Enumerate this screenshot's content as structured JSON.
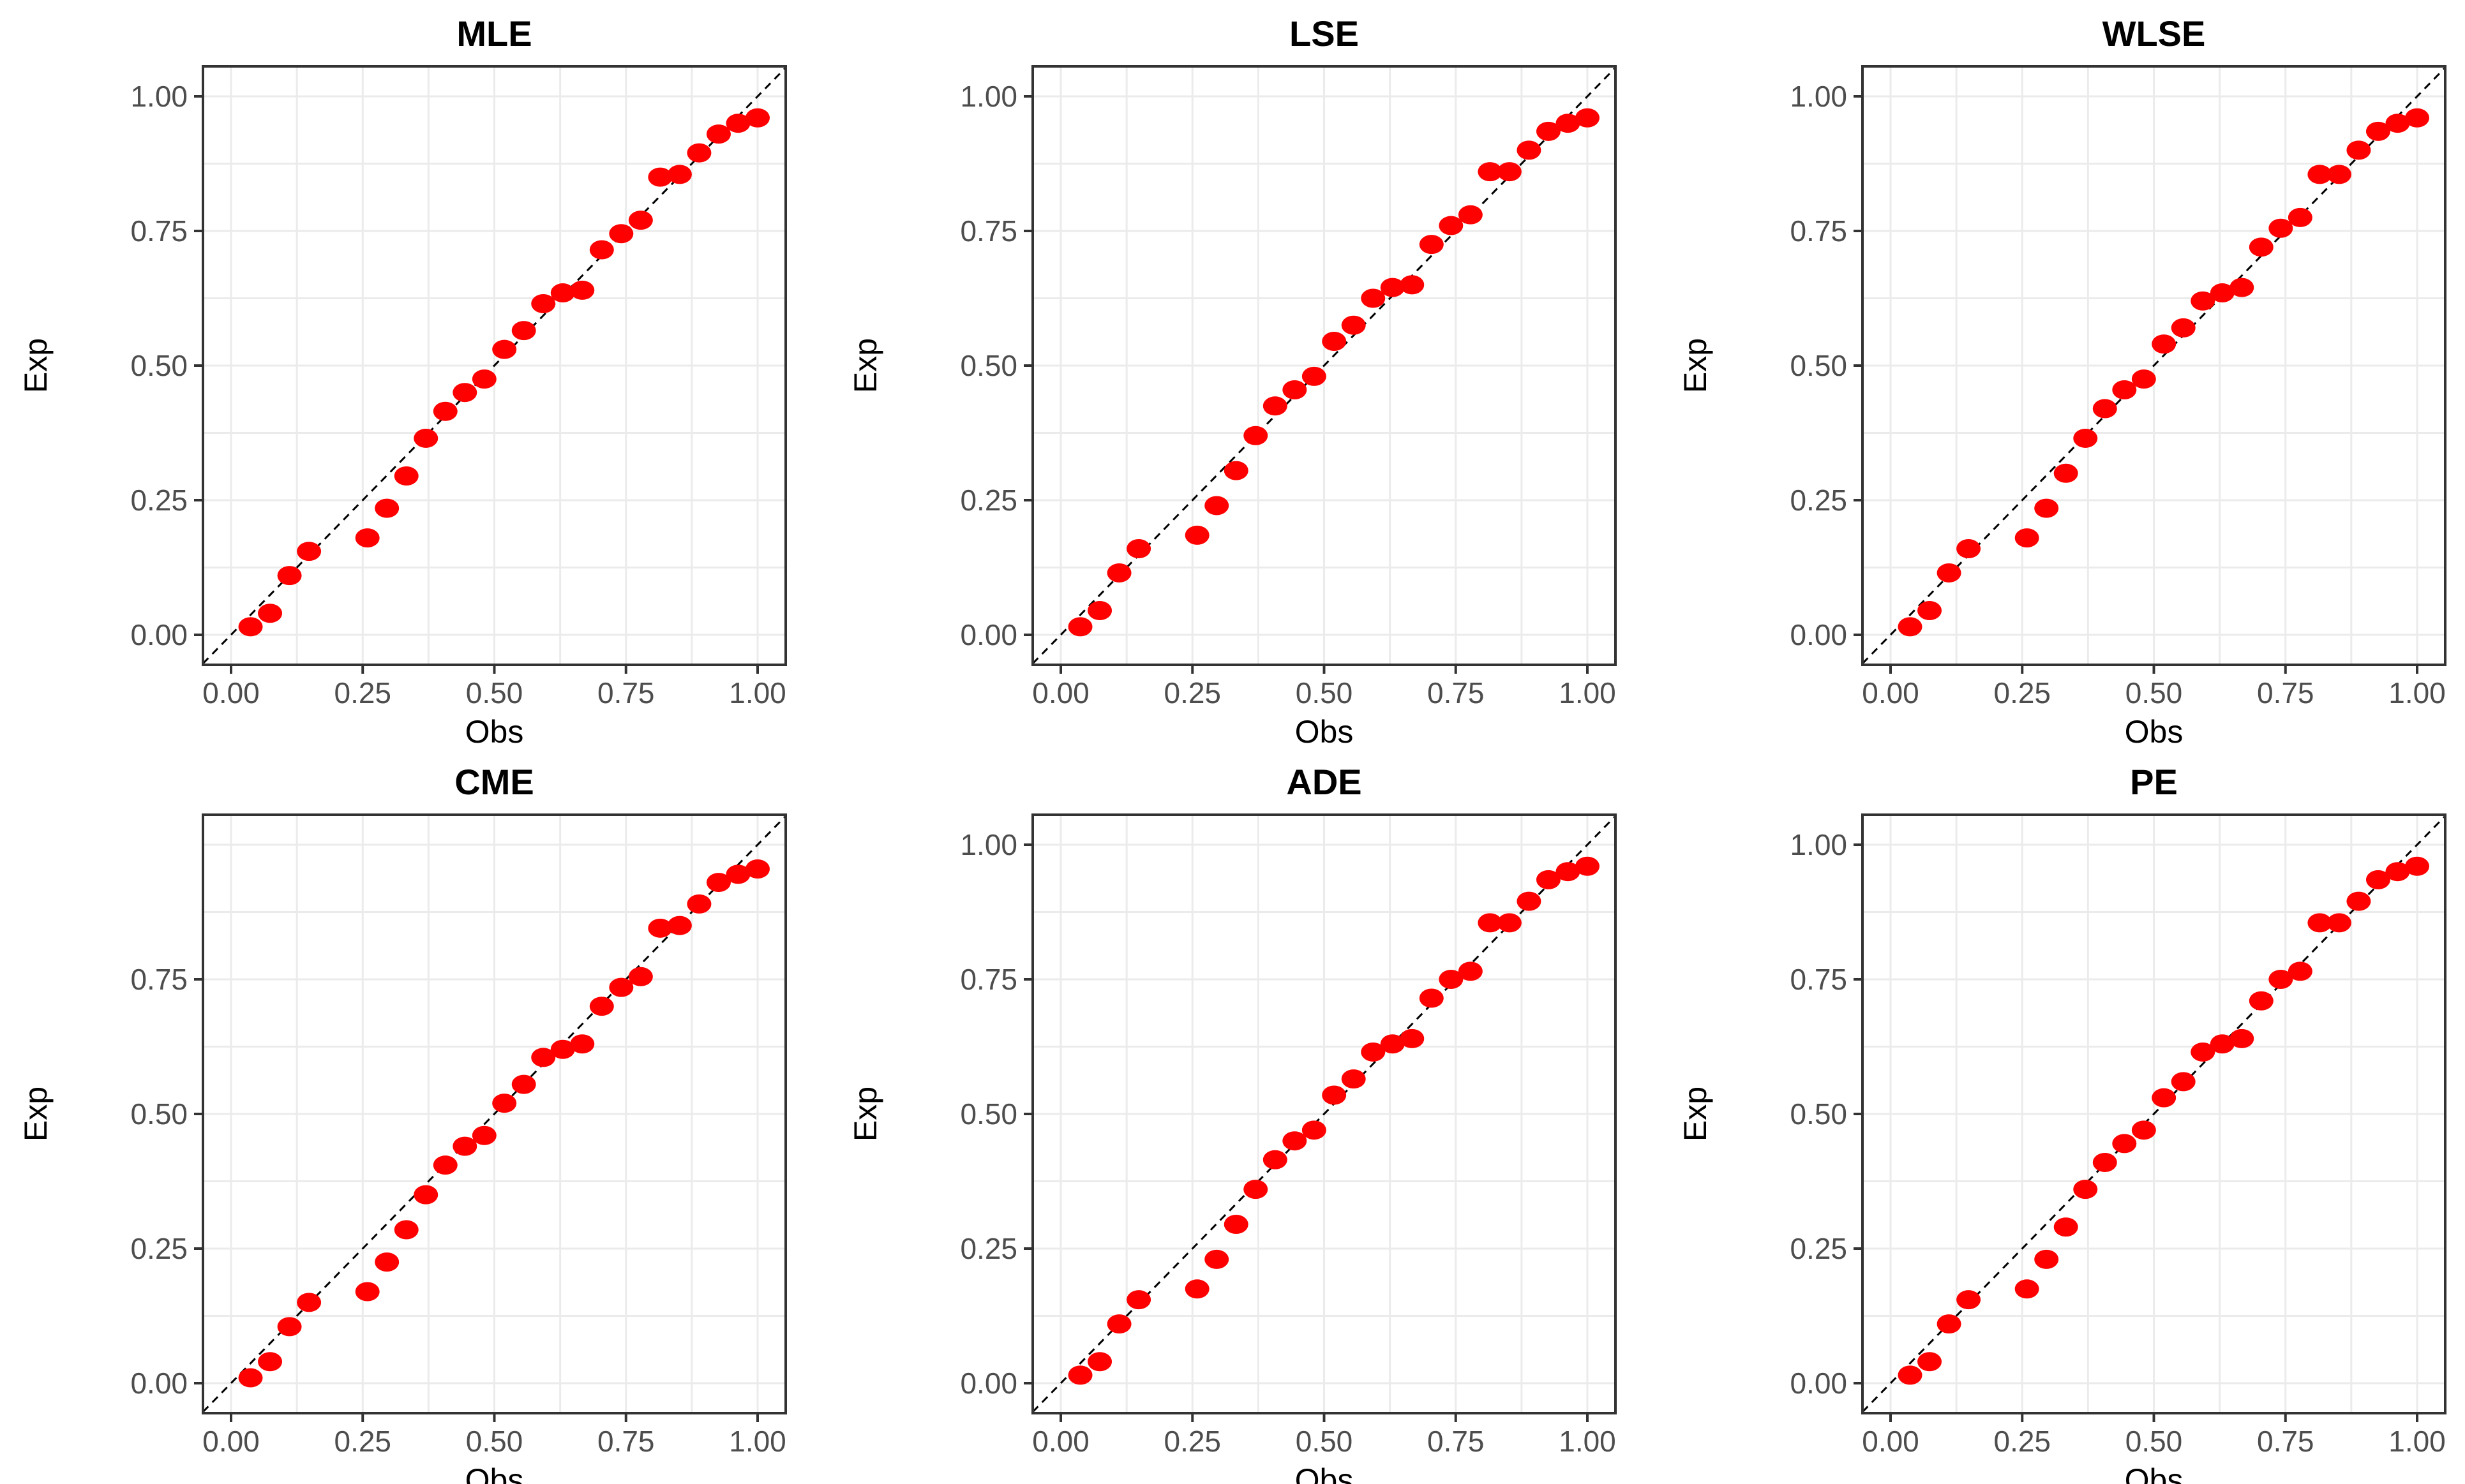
{
  "chart_data": [
    {
      "type": "scatter",
      "title": "MLE",
      "xlabel": "Obs",
      "ylabel": "Exp",
      "xlim": [
        0,
        1
      ],
      "ylim": [
        0,
        1
      ],
      "xticks": [
        "0.00",
        "0.25",
        "0.50",
        "0.75",
        "1.00"
      ],
      "yticks": [
        "0.00",
        "0.25",
        "0.50",
        "0.75",
        "1.00"
      ],
      "reference_line": "y = x (dashed)",
      "point_color": "#ff0000",
      "x": [
        0.037,
        0.074,
        0.111,
        0.148,
        0.259,
        0.296,
        0.333,
        0.37,
        0.407,
        0.444,
        0.481,
        0.519,
        0.556,
        0.593,
        0.63,
        0.667,
        0.704,
        0.741,
        0.778,
        0.815,
        0.852,
        0.889,
        0.926,
        0.963,
        1.0
      ],
      "y": [
        0.015,
        0.04,
        0.11,
        0.155,
        0.18,
        0.235,
        0.295,
        0.365,
        0.415,
        0.45,
        0.475,
        0.53,
        0.565,
        0.615,
        0.635,
        0.64,
        0.715,
        0.745,
        0.77,
        0.85,
        0.855,
        0.895,
        0.93,
        0.95,
        0.96
      ]
    },
    {
      "type": "scatter",
      "title": "LSE",
      "xlabel": "Obs",
      "ylabel": "Exp",
      "xlim": [
        0,
        1
      ],
      "ylim": [
        0,
        1
      ],
      "xticks": [
        "0.00",
        "0.25",
        "0.50",
        "0.75",
        "1.00"
      ],
      "yticks": [
        "0.00",
        "0.25",
        "0.50",
        "0.75",
        "1.00"
      ],
      "reference_line": "y = x (dashed)",
      "point_color": "#ff0000",
      "x": [
        0.037,
        0.074,
        0.111,
        0.148,
        0.259,
        0.296,
        0.333,
        0.37,
        0.407,
        0.444,
        0.481,
        0.519,
        0.556,
        0.593,
        0.63,
        0.667,
        0.704,
        0.741,
        0.778,
        0.815,
        0.852,
        0.889,
        0.926,
        0.963,
        1.0
      ],
      "y": [
        0.015,
        0.045,
        0.115,
        0.16,
        0.185,
        0.24,
        0.305,
        0.37,
        0.425,
        0.455,
        0.48,
        0.545,
        0.575,
        0.625,
        0.645,
        0.65,
        0.725,
        0.76,
        0.78,
        0.86,
        0.86,
        0.9,
        0.935,
        0.95,
        0.96
      ]
    },
    {
      "type": "scatter",
      "title": "WLSE",
      "xlabel": "Obs",
      "ylabel": "Exp",
      "xlim": [
        0,
        1
      ],
      "ylim": [
        0,
        1
      ],
      "xticks": [
        "0.00",
        "0.25",
        "0.50",
        "0.75",
        "1.00"
      ],
      "yticks": [
        "0.00",
        "0.25",
        "0.50",
        "0.75",
        "1.00"
      ],
      "reference_line": "y = x (dashed)",
      "point_color": "#ff0000",
      "x": [
        0.037,
        0.074,
        0.111,
        0.148,
        0.259,
        0.296,
        0.333,
        0.37,
        0.407,
        0.444,
        0.481,
        0.519,
        0.556,
        0.593,
        0.63,
        0.667,
        0.704,
        0.741,
        0.778,
        0.815,
        0.852,
        0.889,
        0.926,
        0.963,
        1.0
      ],
      "y": [
        0.015,
        0.045,
        0.115,
        0.16,
        0.18,
        0.235,
        0.3,
        0.365,
        0.42,
        0.455,
        0.475,
        0.54,
        0.57,
        0.62,
        0.635,
        0.645,
        0.72,
        0.755,
        0.775,
        0.855,
        0.855,
        0.9,
        0.935,
        0.95,
        0.96
      ]
    },
    {
      "type": "scatter",
      "title": "CME",
      "xlabel": "Obs",
      "ylabel": "Exp",
      "xlim": [
        0,
        1
      ],
      "ylim": [
        0,
        1
      ],
      "xticks": [
        "0.00",
        "0.25",
        "0.50",
        "0.75",
        "1.00"
      ],
      "yticks": [
        "0.00",
        "0.25",
        "0.50",
        "0.75"
      ],
      "reference_line": "y = x (dashed)",
      "point_color": "#ff0000",
      "x": [
        0.037,
        0.074,
        0.111,
        0.148,
        0.259,
        0.296,
        0.333,
        0.37,
        0.407,
        0.444,
        0.481,
        0.519,
        0.556,
        0.593,
        0.63,
        0.667,
        0.704,
        0.741,
        0.778,
        0.815,
        0.852,
        0.889,
        0.926,
        0.963,
        1.0
      ],
      "y": [
        0.01,
        0.04,
        0.105,
        0.15,
        0.17,
        0.225,
        0.285,
        0.35,
        0.405,
        0.44,
        0.46,
        0.52,
        0.555,
        0.605,
        0.62,
        0.63,
        0.7,
        0.735,
        0.755,
        0.845,
        0.85,
        0.89,
        0.93,
        0.945,
        0.955
      ]
    },
    {
      "type": "scatter",
      "title": "ADE",
      "xlabel": "Obs",
      "ylabel": "Exp",
      "xlim": [
        0,
        1
      ],
      "ylim": [
        0,
        1
      ],
      "xticks": [
        "0.00",
        "0.25",
        "0.50",
        "0.75",
        "1.00"
      ],
      "yticks": [
        "0.00",
        "0.25",
        "0.50",
        "0.75",
        "1.00"
      ],
      "reference_line": "y = x (dashed)",
      "point_color": "#ff0000",
      "x": [
        0.037,
        0.074,
        0.111,
        0.148,
        0.259,
        0.296,
        0.333,
        0.37,
        0.407,
        0.444,
        0.481,
        0.519,
        0.556,
        0.593,
        0.63,
        0.667,
        0.704,
        0.741,
        0.778,
        0.815,
        0.852,
        0.889,
        0.926,
        0.963,
        1.0
      ],
      "y": [
        0.015,
        0.04,
        0.11,
        0.155,
        0.175,
        0.23,
        0.295,
        0.36,
        0.415,
        0.45,
        0.47,
        0.535,
        0.565,
        0.615,
        0.63,
        0.64,
        0.715,
        0.75,
        0.765,
        0.855,
        0.855,
        0.895,
        0.935,
        0.95,
        0.96
      ]
    },
    {
      "type": "scatter",
      "title": "PE",
      "xlabel": "Obs",
      "ylabel": "Exp",
      "xlim": [
        0,
        1
      ],
      "ylim": [
        0,
        1
      ],
      "xticks": [
        "0.00",
        "0.25",
        "0.50",
        "0.75",
        "1.00"
      ],
      "yticks": [
        "0.00",
        "0.25",
        "0.50",
        "0.75",
        "1.00"
      ],
      "reference_line": "y = x (dashed)",
      "point_color": "#ff0000",
      "x": [
        0.037,
        0.074,
        0.111,
        0.148,
        0.259,
        0.296,
        0.333,
        0.37,
        0.407,
        0.444,
        0.481,
        0.519,
        0.556,
        0.593,
        0.63,
        0.667,
        0.704,
        0.741,
        0.778,
        0.815,
        0.852,
        0.889,
        0.926,
        0.963,
        1.0
      ],
      "y": [
        0.015,
        0.04,
        0.11,
        0.155,
        0.175,
        0.23,
        0.29,
        0.36,
        0.41,
        0.445,
        0.47,
        0.53,
        0.56,
        0.615,
        0.63,
        0.64,
        0.71,
        0.75,
        0.765,
        0.855,
        0.855,
        0.895,
        0.935,
        0.95,
        0.96
      ]
    }
  ]
}
